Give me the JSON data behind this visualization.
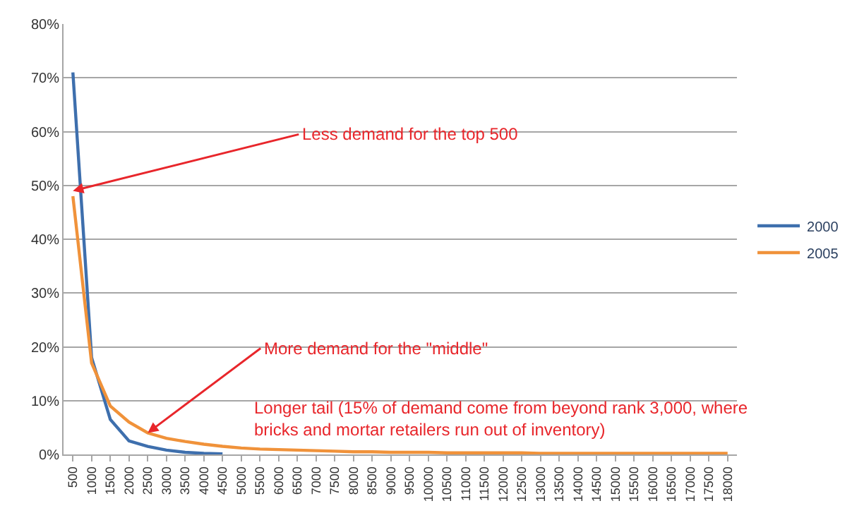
{
  "chart_data": {
    "type": "line",
    "categories": [
      "500",
      "1000",
      "1500",
      "2000",
      "2500",
      "3000",
      "3500",
      "4000",
      "4500",
      "5000",
      "5500",
      "6000",
      "6500",
      "7000",
      "7500",
      "8000",
      "8500",
      "9000",
      "9500",
      "10000",
      "10500",
      "11000",
      "11500",
      "12000",
      "12500",
      "13000",
      "13500",
      "14000",
      "14500",
      "15000",
      "15500",
      "16000",
      "16500",
      "17000",
      "17500",
      "18000"
    ],
    "series": [
      {
        "name": "2000",
        "color": "#3e6fad",
        "values": [
          71,
          18,
          6.5,
          2.5,
          1.5,
          0.8,
          0.4,
          0.2,
          0.1,
          null,
          null,
          null,
          null,
          null,
          null,
          null,
          null,
          null,
          null,
          null,
          null,
          null,
          null,
          null,
          null,
          null,
          null,
          null,
          null,
          null,
          null,
          null,
          null,
          null,
          null,
          null
        ]
      },
      {
        "name": "2005",
        "color": "#f0923a",
        "values": [
          48,
          17,
          9,
          6,
          4,
          3,
          2.4,
          1.9,
          1.5,
          1.2,
          1.0,
          0.9,
          0.8,
          0.7,
          0.6,
          0.5,
          0.5,
          0.4,
          0.4,
          0.4,
          0.3,
          0.3,
          0.3,
          0.3,
          0.3,
          0.2,
          0.2,
          0.2,
          0.2,
          0.2,
          0.2,
          0.2,
          0.2,
          0.2,
          0.2,
          0.2
        ]
      }
    ],
    "ylim": [
      0,
      80
    ],
    "yticks": [
      {
        "value": 0,
        "label": "0%"
      },
      {
        "value": 10,
        "label": "10%"
      },
      {
        "value": 20,
        "label": "20%"
      },
      {
        "value": 30,
        "label": "30%"
      },
      {
        "value": 40,
        "label": "40%"
      },
      {
        "value": 50,
        "label": "50%"
      },
      {
        "value": 60,
        "label": "60%"
      },
      {
        "value": 70,
        "label": "70%"
      },
      {
        "value": 80,
        "label": "80%"
      }
    ],
    "grid": "y",
    "legend": "right",
    "marker": "none",
    "line_style": "solid",
    "annotations": [
      {
        "text": "Less demand for the top 500",
        "x": "500",
        "y": 49
      },
      {
        "text": "More demand for the \"middle\"",
        "x": "2500",
        "y": 4
      },
      "Longer tail (15% of demand come from beyond rank 3,000, where\nbricks and mortar retailers run out of inventory)"
    ]
  }
}
